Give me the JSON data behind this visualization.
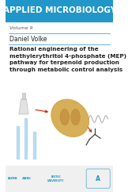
{
  "header_bg_color": "#2196C8",
  "header_text": "APPLIED MICROBIOLOGY",
  "header_text_color": "#FFFFFF",
  "header_font_size": 7.5,
  "volume_text": "Volume 9",
  "volume_font_size": 4.5,
  "author_text": "Daniel Volke",
  "author_font_size": 5.5,
  "title_text": "Rational engineering of the\nmethylerythritol 4-phosphate (MEP)\npathway for terpenoid production\nthrough metabolic control analysis",
  "title_font_size": 5.2,
  "body_bg_color": "#FFFFFF",
  "line_color": "#2196C8",
  "bottom_bar_color": "#F0F0F0"
}
